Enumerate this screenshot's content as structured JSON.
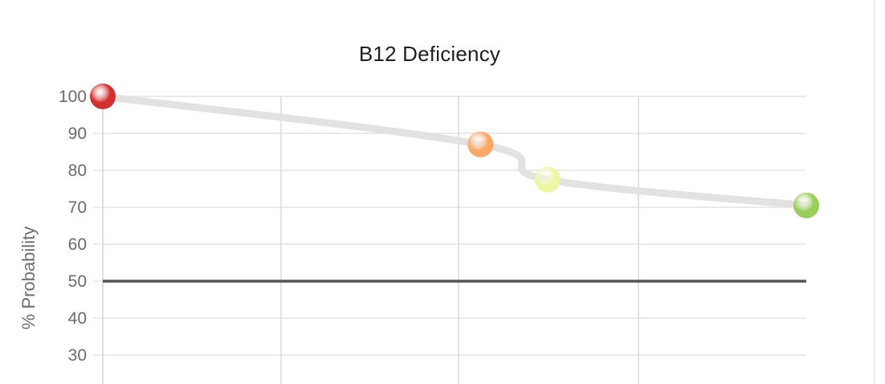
{
  "chart_data": {
    "type": "line",
    "title": "B12 Deficiency",
    "xlabel": "",
    "ylabel": "% Probability",
    "ylim": [
      30,
      100
    ],
    "yticks": [
      100,
      90,
      80,
      70,
      60,
      50,
      40,
      30
    ],
    "x_gridlines": 5,
    "grid": true,
    "series": [
      {
        "values": [
          {
            "x": 0.0,
            "y": 100
          },
          {
            "x": 0.537,
            "y": 87
          },
          {
            "x": 0.632,
            "y": 77.5
          },
          {
            "x": 1.0,
            "y": 70.5
          }
        ],
        "line_color": "#e2e2e2",
        "point_colors": [
          "#d62f2f",
          "#fba866",
          "#eef6a0",
          "#98cf59"
        ]
      }
    ],
    "threshold": {
      "y": 50,
      "color": "#555555"
    }
  }
}
